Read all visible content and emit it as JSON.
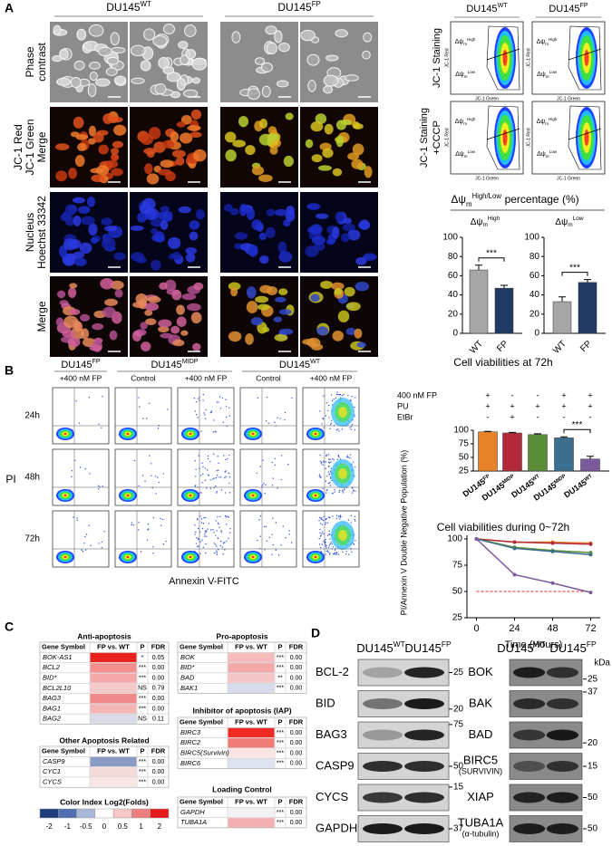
{
  "panel_a": {
    "label": "A",
    "image_columns": [
      {
        "text": "DU145",
        "sup": "WT"
      },
      {
        "text": "DU145",
        "sup": "FP"
      }
    ],
    "image_rows": [
      [
        "Phase",
        "contrast"
      ],
      [
        "JC-1 Red",
        "JC-1 Green",
        "Merge"
      ],
      [
        "Nucleus",
        "Hoechst 33342"
      ],
      [
        "Merge"
      ]
    ],
    "flow": {
      "columns": [
        {
          "text": "DU145",
          "sup": "WT"
        },
        {
          "text": "DU145",
          "sup": "FP"
        }
      ],
      "rows": [
        [
          "JC-1 Staining"
        ],
        [
          "JC-1 Staining",
          "+CCCP"
        ]
      ],
      "gate_high": {
        "text": "Δψ",
        "sub": "m",
        "sup": "High"
      },
      "gate_low": {
        "text": "Δψ",
        "sub": "m",
        "sup": "Low"
      },
      "x_label": "JC-1 Green",
      "y_label": "JC-1 Red"
    },
    "chart_title": {
      "text": "Δψ",
      "sub": "m",
      "sup": "High/Low",
      "rest": "percentage (%)"
    }
  },
  "panel_b": {
    "label": "B",
    "groups": [
      {
        "name": {
          "text": "DU145",
          "sup": "FP"
        },
        "conditions": [
          "+400 nM FP"
        ]
      },
      {
        "name": {
          "text": "DU145",
          "sup": "MIDP"
        },
        "conditions": [
          "Control",
          "+400 nM FP"
        ]
      },
      {
        "name": {
          "text": "DU145",
          "sup": "WT"
        },
        "conditions": [
          "Control",
          "+400 nM FP"
        ]
      }
    ],
    "times": [
      "24h",
      "48h",
      "72h"
    ],
    "y_label": "PI",
    "x_label": "Annexin V-FITC"
  },
  "chart_data": [
    {
      "type": "bar",
      "subtitle": {
        "text": "Δψ",
        "sub": "m",
        "sup": "High"
      },
      "categories": [
        "WT",
        "FP"
      ],
      "values": [
        66,
        47
      ],
      "errors": [
        5,
        3
      ],
      "colors": [
        "#a6a6a6",
        "#1f3864"
      ],
      "ylim": [
        0,
        100
      ],
      "yticks": [
        0,
        20,
        40,
        60,
        80,
        100
      ],
      "annotation": "***"
    },
    {
      "type": "bar",
      "subtitle": {
        "text": "Δψ",
        "sub": "m",
        "sup": "Low"
      },
      "categories": [
        "WT",
        "FP"
      ],
      "values": [
        33,
        53
      ],
      "errors": [
        5,
        3
      ],
      "colors": [
        "#a6a6a6",
        "#1f3864"
      ],
      "ylim": [
        0,
        100
      ],
      "yticks": [
        0,
        20,
        40,
        60,
        80,
        100
      ],
      "annotation": "***"
    },
    {
      "type": "bar",
      "title": "Cell viabilities at 72h",
      "conditions": [
        {
          "name": "400 nM FP",
          "values": [
            "+",
            "-",
            "-",
            "+",
            "+"
          ]
        },
        {
          "name": "PU",
          "values": [
            "+",
            "+",
            "+",
            "+",
            "+"
          ]
        },
        {
          "name": "EtBr",
          "values": [
            "-",
            "+",
            "-",
            "-",
            "-"
          ]
        }
      ],
      "categories": [
        {
          "text": "DU145",
          "sup": "FP"
        },
        {
          "text": "DU145",
          "sup": "MIDP"
        },
        {
          "text": "DU145",
          "sup": "WT"
        },
        {
          "text": "DU145",
          "sup": "MIDP"
        },
        {
          "text": "DU145",
          "sup": "WT"
        }
      ],
      "values": [
        97,
        95,
        92,
        86,
        47
      ],
      "errors": [
        1,
        1,
        1.5,
        2,
        5
      ],
      "colors": [
        "#e8822a",
        "#b22a3a",
        "#5b8c3a",
        "#3a6f8f",
        "#7a5a9c"
      ],
      "ylim": [
        25,
        100
      ],
      "yticks": [
        25,
        50,
        75,
        100
      ],
      "ylabel": "PI/Annexin V Double Negative Population (%)",
      "annotation": "***"
    },
    {
      "type": "line",
      "title": "Cell viabilities during 0~72h",
      "x": [
        0,
        24,
        48,
        72
      ],
      "series": [
        {
          "color": "#e8822a",
          "values": [
            100,
            97,
            97,
            96
          ]
        },
        {
          "color": "#b22a3a",
          "values": [
            100,
            97,
            96,
            95
          ]
        },
        {
          "color": "#5b8c3a",
          "values": [
            100,
            92,
            89,
            87
          ]
        },
        {
          "color": "#3a6f8f",
          "values": [
            100,
            91,
            88,
            85
          ]
        },
        {
          "color": "#7a5a9c",
          "values": [
            100,
            66,
            58,
            49
          ]
        }
      ],
      "xlim": [
        -6,
        78
      ],
      "xticks": [
        0,
        24,
        48,
        72
      ],
      "ylim": [
        25,
        100
      ],
      "yticks": [
        25,
        50,
        75,
        100
      ],
      "xlabel": "Time (Hours)",
      "reference_line": {
        "value": 50,
        "color": "#e02020"
      }
    }
  ],
  "panel_c": {
    "label": "C",
    "tables": [
      {
        "title": "Anti-apoptosis",
        "columns": [
          "Gene Symbol",
          "FP vs. WT",
          "P",
          "FDR"
        ],
        "rows": [
          [
            "BOK-AS1",
            "*",
            "0.05"
          ],
          [
            "BCL2",
            "***",
            "0.00"
          ],
          [
            "BID*",
            "***",
            "0.00"
          ],
          [
            "BCL2L10",
            "NS",
            "0.79"
          ],
          [
            "BAG3",
            "***",
            "0.00"
          ],
          [
            "BAG1",
            "***",
            "0.00"
          ],
          [
            "BAG2",
            "NS",
            "0.11"
          ]
        ],
        "colors": [
          "#e8221c",
          "#f28e8e",
          "#f4a9a9",
          "#f6c9c9",
          "#f08a8a",
          "#f5b5b5",
          "#d9dbe8"
        ]
      },
      {
        "title": "Other Apoptosis Related",
        "columns": [
          "Gene Symbol",
          "FP vs. WT",
          "P",
          "FDR"
        ],
        "rows": [
          [
            "CASP9",
            "***",
            "0.00"
          ],
          [
            "CYC1",
            "***",
            "0.00"
          ],
          [
            "CYCS",
            "***",
            "0.00"
          ]
        ],
        "colors": [
          "#8a9cc6",
          "#f6d9d9",
          "#f8e6e6"
        ]
      },
      {
        "title": "Pro-apoptosis",
        "columns": [
          "Gene Symbol",
          "FP vs. WT",
          "P",
          "FDR"
        ],
        "rows": [
          [
            "BOK",
            "***",
            "0.00"
          ],
          [
            "BID*",
            "***",
            "0.00"
          ],
          [
            "BAD",
            "**",
            "0.00"
          ],
          [
            "BAK1",
            "***",
            "0.00"
          ]
        ],
        "colors": [
          "#f6bcbc",
          "#f4a9a9",
          "#f6c4c4",
          "#d6dcec"
        ]
      },
      {
        "title": "Inhibitor of apoptosis (IAP)",
        "columns": [
          "Gene Symbol",
          "FP vs. WT",
          "P",
          "FDR"
        ],
        "rows": [
          [
            "BIRC3",
            "***",
            "0.00"
          ],
          [
            "BIRC2",
            "***",
            "0.00"
          ],
          [
            "BIRC5(Survivin)",
            "***",
            "0.00"
          ],
          [
            "BIRC6",
            "***",
            "0.00"
          ]
        ],
        "colors": [
          "#ee2a22",
          "#f07a76",
          "#fbe3e3",
          "#dfe3ef"
        ]
      },
      {
        "title": "Loading Control",
        "columns": [
          "Gene Symbol",
          "FP vs. WT",
          "P",
          "FDR"
        ],
        "rows": [
          [
            "GAPDH",
            "***",
            "0.00"
          ],
          [
            "TUBA1A",
            "***",
            "0.00"
          ]
        ],
        "colors": [
          "#f2f2f4",
          "#f4b0b0"
        ]
      }
    ],
    "color_index": {
      "title": "Color Index Log2(Folds)",
      "labels": [
        -2,
        -1,
        -0.5,
        0,
        0.5,
        1,
        2
      ],
      "colors": [
        "#1f3d7a",
        "#4f6fae",
        "#a8b7d8",
        "#ffffff",
        "#f7c6c6",
        "#ef7f7f",
        "#e51c1c"
      ]
    }
  },
  "panel_d": {
    "label": "D",
    "blots": [
      {
        "headers": [
          {
            "text": "DU145",
            "sup": "WT"
          },
          {
            "text": "DU145",
            "sup": "FP"
          }
        ],
        "rows": [
          {
            "name": [
              "BCL-2"
            ],
            "marker": 25
          },
          {
            "name": [
              "BID"
            ],
            "marker": 20
          },
          {
            "name": [
              "BAG3"
            ],
            "marker": 75
          },
          {
            "name": [
              "CASP9"
            ],
            "marker": 50
          },
          {
            "name": [
              "CYCS"
            ],
            "marker": 15
          },
          {
            "name": [
              "GAPDH"
            ],
            "marker": 37
          }
        ]
      },
      {
        "headers": [
          {
            "text": "DU145",
            "sup": "WT"
          },
          {
            "text": "DU145",
            "sup": "FP"
          }
        ],
        "unit": "kDa",
        "rows": [
          {
            "name": [
              "BOK"
            ],
            "marker": 25
          },
          {
            "name": [
              "BAK"
            ],
            "marker": 37
          },
          {
            "name": [
              "BAD"
            ],
            "marker": 20
          },
          {
            "name": [
              "BIRC5",
              "(SURVIVIN)"
            ],
            "marker": 15
          },
          {
            "name": [
              "XIAP"
            ],
            "marker": 50
          },
          {
            "name": [
              "TUBA1A",
              "(α-tubulin)"
            ],
            "marker": 50
          }
        ]
      }
    ]
  }
}
